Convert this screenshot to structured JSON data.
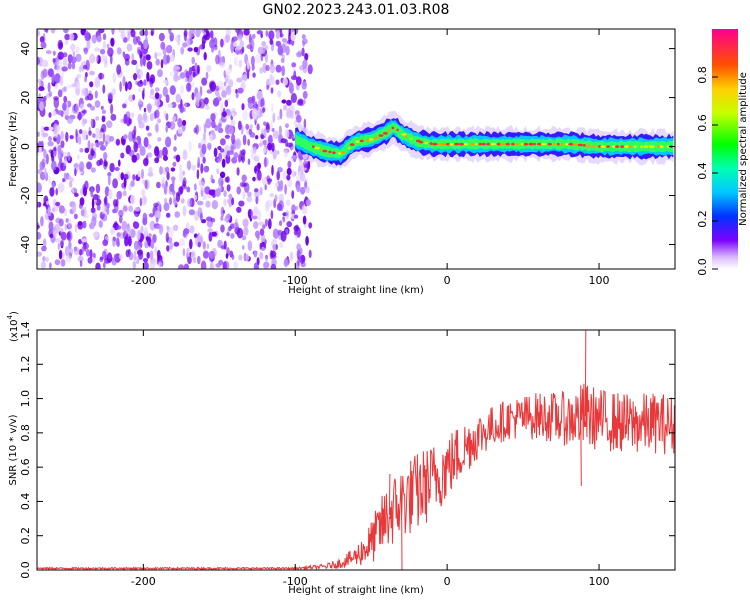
{
  "chart_data": [
    {
      "type": "heatmap",
      "title": "GN02.2023.243.01.03.R08",
      "xlabel": "Height of straight line (km)",
      "ylabel": "Frequency (Hz)",
      "xlim": [
        -270,
        150
      ],
      "ylim": [
        -50,
        48
      ],
      "xticks": [
        "-200",
        "-100",
        "0",
        "100"
      ],
      "yticks": [
        "-40",
        "-20",
        "0",
        "20",
        "40"
      ],
      "colorbar": {
        "label": "Normalized spectral amplitude",
        "range": [
          0,
          1
        ],
        "ticks": [
          "0.0",
          "0.2",
          "0.4",
          "0.6",
          "0.8"
        ]
      },
      "noise_region_x": [
        -270,
        -90
      ],
      "signal_track": {
        "x": [
          -100,
          -90,
          -80,
          -70,
          -65,
          -60,
          -50,
          -40,
          -35,
          -30,
          -20,
          -10,
          0,
          20,
          40,
          60,
          80,
          100,
          120,
          150
        ],
        "y": [
          3,
          0,
          -2,
          -3,
          0,
          2,
          3,
          6,
          8,
          5,
          2,
          1,
          1,
          1,
          1,
          1,
          1,
          0,
          0,
          0
        ]
      }
    },
    {
      "type": "line",
      "xlabel": "Height of straight line (km)",
      "ylabel": "SNR (10 * v/v)",
      "yexp": "(x10",
      "yexp_power": "4",
      "yexp_close": ")",
      "xlim": [
        -270,
        150
      ],
      "ylim": [
        0,
        1.4
      ],
      "xticks": [
        "-200",
        "-100",
        "0",
        "100"
      ],
      "yticks": [
        "0.0",
        "0.2",
        "0.4",
        "0.6",
        "0.8",
        "1.0",
        "1.2",
        "1.4"
      ],
      "series": [
        {
          "color": "#e8383a",
          "envelope": {
            "x": [
              -270,
              -100,
              -80,
              -70,
              -60,
              -50,
              -40,
              -30,
              -20,
              -10,
              0,
              10,
              20,
              30,
              40,
              60,
              80,
              90,
              100,
              120,
              140,
              150
            ],
            "mean": [
              0.01,
              0.01,
              0.02,
              0.04,
              0.08,
              0.16,
              0.3,
              0.4,
              0.45,
              0.52,
              0.6,
              0.7,
              0.78,
              0.84,
              0.88,
              0.9,
              0.88,
              0.9,
              0.88,
              0.85,
              0.86,
              0.84
            ],
            "spread": [
              0.005,
              0.005,
              0.015,
              0.03,
              0.06,
              0.13,
              0.2,
              0.22,
              0.24,
              0.22,
              0.2,
              0.17,
              0.14,
              0.12,
              0.12,
              0.14,
              0.16,
              0.2,
              0.18,
              0.18,
              0.18,
              0.18
            ]
          },
          "peaks": [
            {
              "x": 91,
              "y": 1.4
            },
            {
              "x": 88,
              "y": 0.49
            },
            {
              "x": -38,
              "y": 0.56
            },
            {
              "x": -30,
              "y": 0.0
            }
          ]
        }
      ]
    }
  ]
}
